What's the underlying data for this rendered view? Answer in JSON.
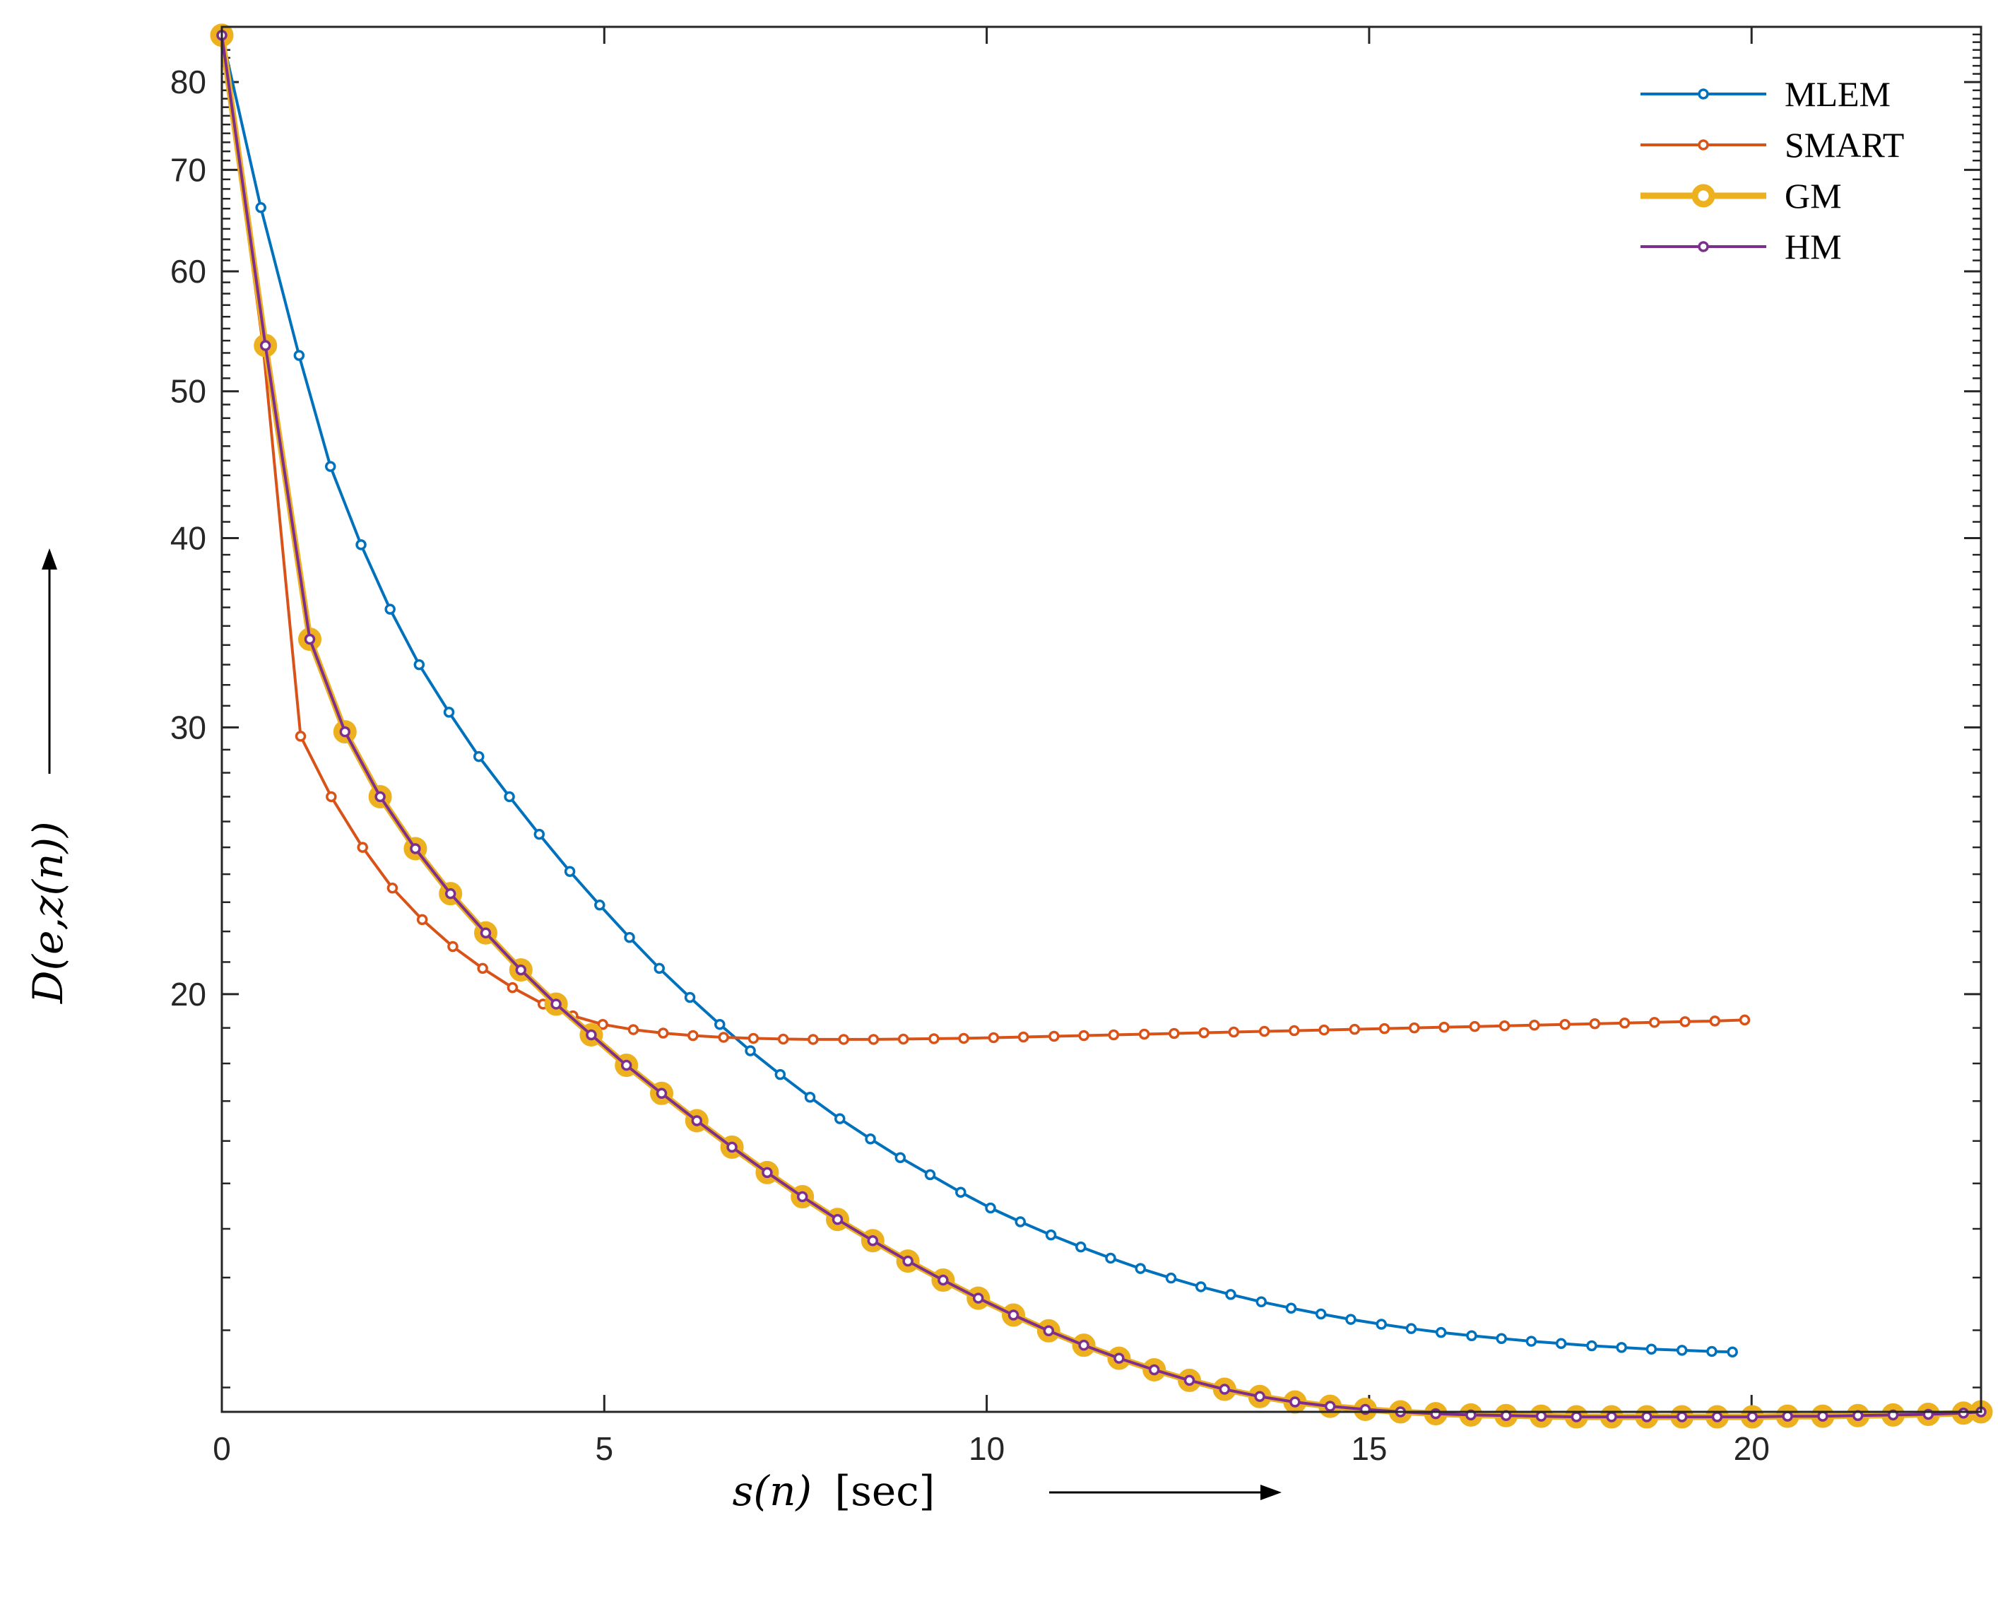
{
  "chart_data": {
    "type": "line",
    "title": "",
    "xlabel": {
      "main": "s(n)",
      "unit": "[sec]"
    },
    "ylabel": "D(e,z(n))",
    "xlim": [
      0,
      23
    ],
    "ylim_log": [
      10.6,
      87
    ],
    "yscale": "log",
    "x_ticks": [
      0,
      5,
      10,
      15,
      20
    ],
    "x_tick_labels": [
      "0",
      "5",
      "10",
      "15",
      "20"
    ],
    "y_ticks_labeled": [
      20,
      30,
      40,
      50,
      60,
      70,
      80
    ],
    "y_tick_labels": [
      "20",
      "30",
      "40",
      "50",
      "60",
      "70",
      "80"
    ],
    "y_ticks_minor": [
      11,
      12,
      13,
      14,
      15,
      16,
      17,
      18,
      19,
      21,
      22,
      23,
      24,
      25,
      26,
      27,
      28,
      29,
      31,
      32,
      33,
      34,
      35,
      36,
      37,
      38,
      39,
      41,
      42,
      43,
      44,
      45,
      46,
      47,
      48,
      49,
      51,
      52,
      53,
      54,
      55,
      56,
      57,
      58,
      59,
      61,
      62,
      63,
      64,
      65,
      66,
      67,
      68,
      69,
      71,
      72,
      73,
      74,
      75,
      76,
      77,
      78,
      79,
      81,
      82,
      83,
      84,
      85,
      86
    ],
    "legend": {
      "position": "top-right"
    },
    "grid": false,
    "series": [
      {
        "name": "MLEM",
        "color": "#0072BD",
        "style": "thin",
        "x": [
          0.0,
          0.51,
          1.01,
          1.42,
          1.82,
          2.2,
          2.58,
          2.97,
          3.36,
          3.76,
          4.15,
          4.55,
          4.94,
          5.33,
          5.72,
          6.12,
          6.51,
          6.91,
          7.3,
          7.69,
          8.08,
          8.48,
          8.87,
          9.26,
          9.66,
          10.05,
          10.44,
          10.84,
          11.23,
          11.62,
          12.01,
          12.41,
          12.8,
          13.19,
          13.59,
          13.98,
          14.37,
          14.76,
          15.16,
          15.55,
          15.94,
          16.34,
          16.73,
          17.12,
          17.51,
          17.91,
          18.3,
          18.69,
          19.09,
          19.48,
          19.75
        ],
        "y": [
          85.9,
          66.1,
          52.8,
          44.6,
          39.6,
          35.9,
          33.0,
          30.7,
          28.7,
          27.0,
          25.5,
          24.1,
          22.9,
          21.8,
          20.8,
          19.9,
          19.1,
          18.35,
          17.7,
          17.1,
          16.55,
          16.05,
          15.6,
          15.2,
          14.8,
          14.45,
          14.15,
          13.87,
          13.62,
          13.39,
          13.18,
          12.99,
          12.82,
          12.67,
          12.53,
          12.41,
          12.3,
          12.2,
          12.11,
          12.03,
          11.96,
          11.9,
          11.85,
          11.8,
          11.76,
          11.72,
          11.69,
          11.66,
          11.64,
          11.62,
          11.61
        ]
      },
      {
        "name": "SMART",
        "color": "#D95319",
        "style": "thin",
        "x": [
          0.0,
          0.54,
          1.03,
          1.43,
          1.84,
          2.23,
          2.62,
          3.02,
          3.41,
          3.8,
          4.2,
          4.59,
          4.98,
          5.38,
          5.77,
          6.16,
          6.56,
          6.95,
          7.34,
          7.73,
          8.13,
          8.52,
          8.91,
          9.31,
          9.7,
          10.09,
          10.48,
          10.88,
          11.27,
          11.66,
          12.06,
          12.45,
          12.84,
          13.23,
          13.63,
          14.02,
          14.41,
          14.81,
          15.2,
          15.59,
          15.98,
          16.38,
          16.77,
          17.16,
          17.56,
          17.95,
          18.34,
          18.73,
          19.13,
          19.52,
          19.91
        ],
        "y": [
          85.9,
          53.5,
          29.6,
          27.0,
          25.0,
          23.5,
          22.4,
          21.5,
          20.8,
          20.2,
          19.7,
          19.35,
          19.1,
          18.95,
          18.85,
          18.78,
          18.73,
          18.7,
          18.68,
          18.67,
          18.67,
          18.67,
          18.68,
          18.69,
          18.7,
          18.72,
          18.74,
          18.76,
          18.78,
          18.8,
          18.82,
          18.84,
          18.86,
          18.88,
          18.9,
          18.92,
          18.94,
          18.96,
          18.98,
          19.0,
          19.02,
          19.04,
          19.06,
          19.08,
          19.1,
          19.12,
          19.14,
          19.16,
          19.18,
          19.2,
          19.23
        ]
      },
      {
        "name": "GM",
        "color": "#EDB120",
        "style": "thick",
        "x": [
          0.0,
          0.57,
          1.15,
          1.61,
          2.07,
          2.53,
          2.99,
          3.45,
          3.91,
          4.37,
          4.83,
          5.29,
          5.75,
          6.21,
          6.67,
          7.13,
          7.59,
          8.05,
          8.51,
          8.97,
          9.43,
          9.89,
          10.35,
          10.81,
          11.27,
          11.73,
          12.19,
          12.65,
          13.11,
          13.57,
          14.03,
          14.49,
          14.95,
          15.41,
          15.87,
          16.33,
          16.79,
          17.25,
          17.71,
          18.17,
          18.63,
          19.09,
          19.55,
          20.01,
          20.47,
          20.93,
          21.39,
          21.85,
          22.31,
          22.77,
          23.0
        ],
        "y": [
          85.9,
          53.6,
          34.3,
          29.8,
          27.0,
          24.95,
          23.3,
          21.95,
          20.75,
          19.7,
          18.8,
          17.95,
          17.2,
          16.5,
          15.85,
          15.25,
          14.7,
          14.2,
          13.75,
          13.33,
          12.95,
          12.6,
          12.28,
          11.99,
          11.73,
          11.5,
          11.3,
          11.12,
          10.97,
          10.85,
          10.76,
          10.69,
          10.64,
          10.6,
          10.57,
          10.55,
          10.54,
          10.53,
          10.52,
          10.52,
          10.52,
          10.52,
          10.52,
          10.52,
          10.53,
          10.53,
          10.54,
          10.55,
          10.56,
          10.58,
          10.6
        ]
      },
      {
        "name": "HM",
        "color": "#7E2F8E",
        "style": "thin",
        "x": [
          0.0,
          0.57,
          1.15,
          1.61,
          2.07,
          2.53,
          2.99,
          3.45,
          3.91,
          4.37,
          4.83,
          5.29,
          5.75,
          6.21,
          6.67,
          7.13,
          7.59,
          8.05,
          8.51,
          8.97,
          9.43,
          9.89,
          10.35,
          10.81,
          11.27,
          11.73,
          12.19,
          12.65,
          13.11,
          13.57,
          14.03,
          14.49,
          14.95,
          15.41,
          15.87,
          16.33,
          16.79,
          17.25,
          17.71,
          18.17,
          18.63,
          19.09,
          19.55,
          20.01,
          20.47,
          20.93,
          21.39,
          21.85,
          22.31,
          22.77,
          23.0
        ],
        "y": [
          85.9,
          53.6,
          34.3,
          29.8,
          27.0,
          24.95,
          23.3,
          21.95,
          20.75,
          19.7,
          18.8,
          17.95,
          17.2,
          16.5,
          15.85,
          15.25,
          14.7,
          14.2,
          13.75,
          13.33,
          12.95,
          12.6,
          12.28,
          11.99,
          11.73,
          11.5,
          11.3,
          11.12,
          10.97,
          10.85,
          10.76,
          10.69,
          10.64,
          10.6,
          10.57,
          10.55,
          10.54,
          10.53,
          10.52,
          10.52,
          10.52,
          10.52,
          10.52,
          10.52,
          10.53,
          10.53,
          10.54,
          10.55,
          10.56,
          10.58,
          10.6
        ]
      }
    ]
  }
}
